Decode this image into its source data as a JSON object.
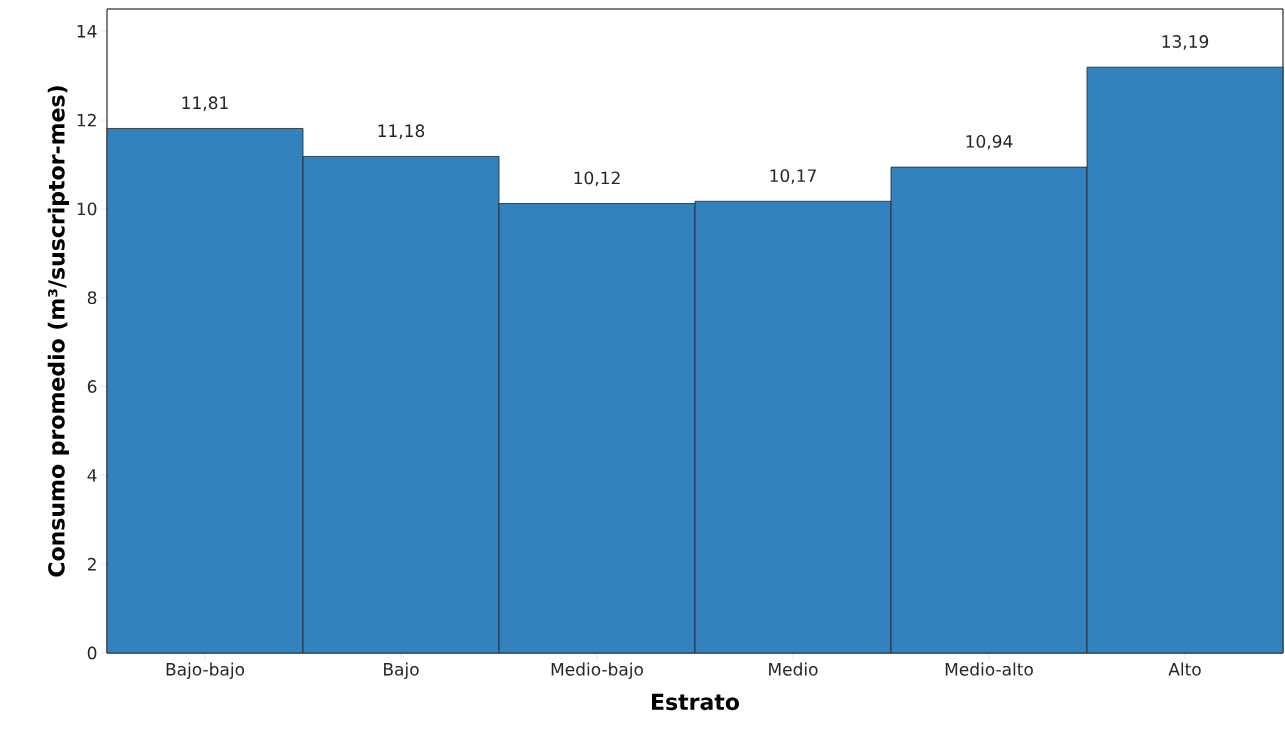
{
  "chart_data": {
    "type": "bar",
    "xlabel": "Estrato",
    "ylabel": "Consumo promedio (m³/suscriptor-mes)",
    "categories": [
      "Bajo-bajo",
      "Bajo",
      "Medio-bajo",
      "Medio",
      "Medio-alto",
      "Alto"
    ],
    "values": [
      11.81,
      11.18,
      10.12,
      10.17,
      10.94,
      13.19
    ],
    "value_labels": [
      "11,81",
      "11,18",
      "10,12",
      "10,17",
      "10,94",
      "13,19"
    ],
    "color": "#3282be",
    "ylim": [
      0,
      14.5
    ],
    "yticks": [
      0,
      2,
      4,
      6,
      8,
      10,
      12,
      14
    ]
  }
}
